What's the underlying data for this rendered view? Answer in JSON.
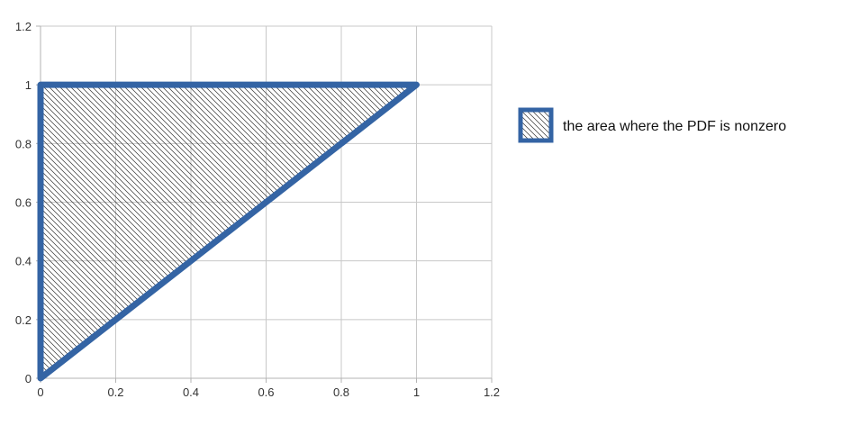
{
  "chart_data": {
    "type": "area",
    "title": "",
    "xlabel": "",
    "ylabel": "",
    "xlim": [
      0,
      1.2
    ],
    "ylim": [
      0,
      1.2
    ],
    "xticks": [
      0,
      0.2,
      0.4,
      0.6,
      0.8,
      1,
      1.2
    ],
    "yticks": [
      0,
      0.2,
      0.4,
      0.6,
      0.8,
      1,
      1.2
    ],
    "xtick_labels": [
      "0",
      "0.2",
      "0.4",
      "0.6",
      "0.8",
      "1",
      "1.2"
    ],
    "ytick_labels": [
      "0",
      "0.2",
      "0.4",
      "0.6",
      "0.8",
      "1",
      "1.2"
    ],
    "grid": true,
    "legend_position": "right",
    "series": [
      {
        "name": "the area where the PDF is nonzero",
        "x": [
          0,
          0,
          1,
          0
        ],
        "y": [
          0,
          1,
          1,
          0
        ],
        "fill": "diagonal-hatch",
        "color": "#3464a4"
      }
    ]
  }
}
